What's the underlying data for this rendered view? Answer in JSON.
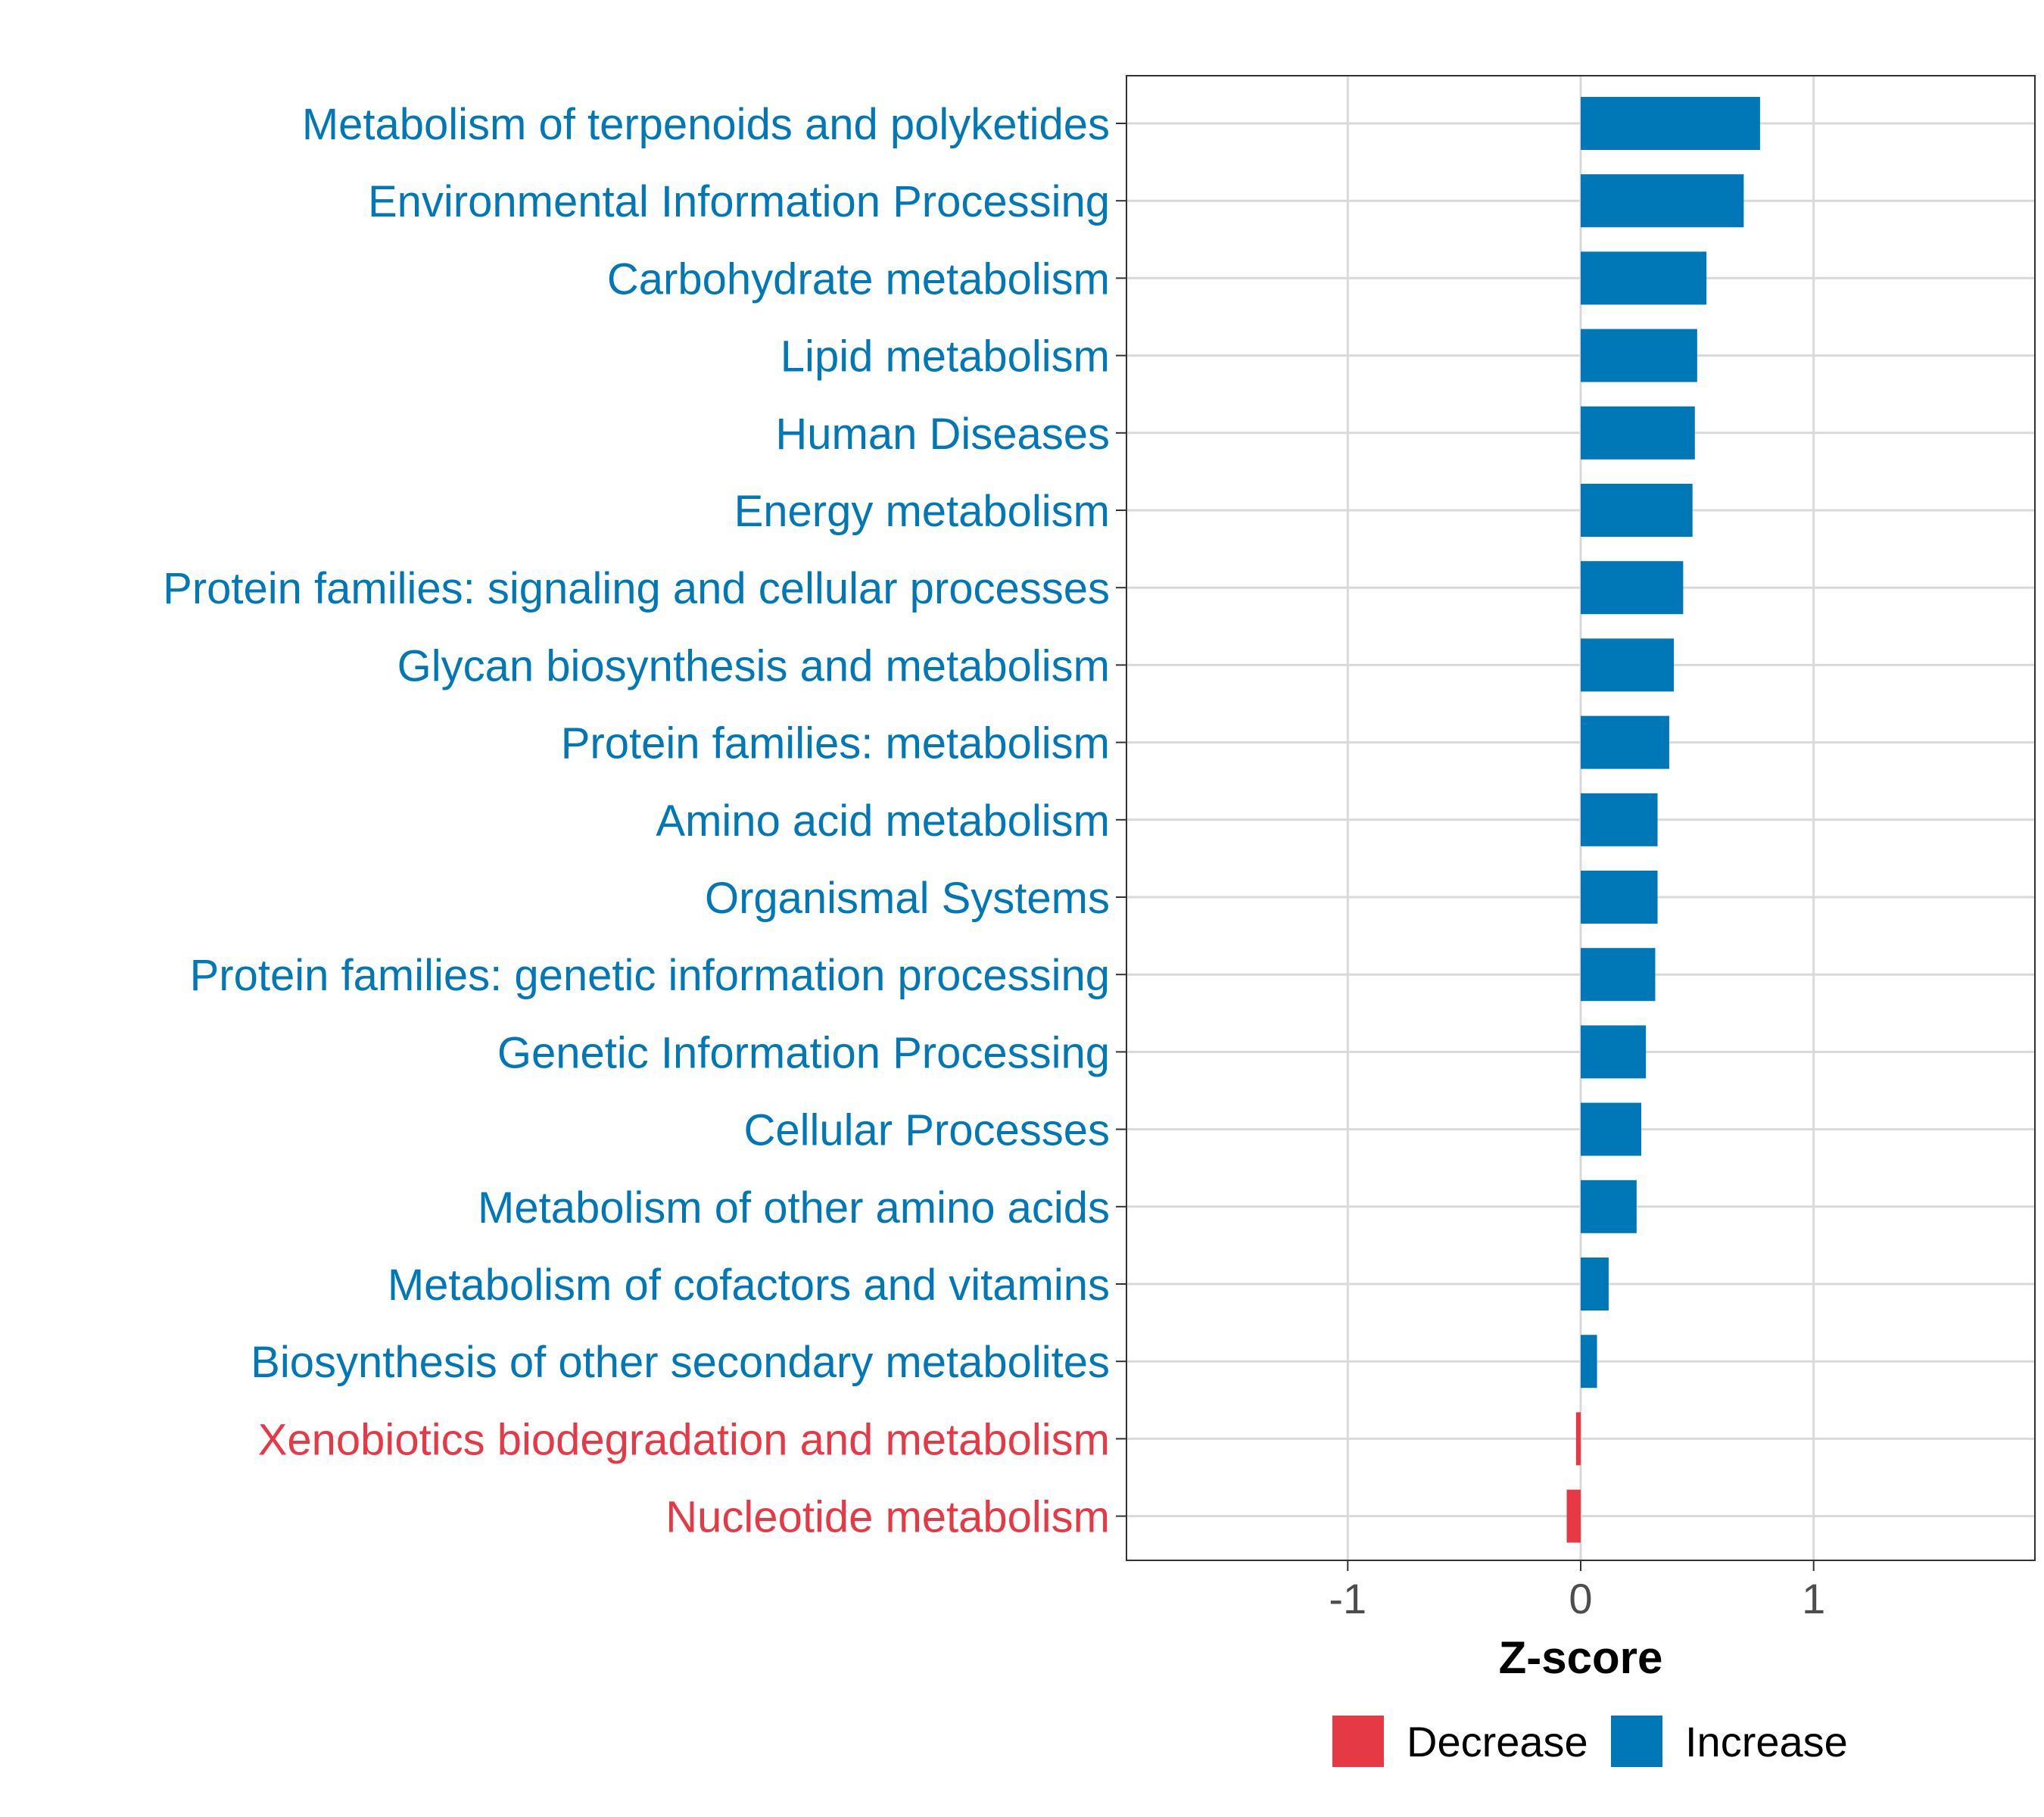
{
  "colors": {
    "increase": "#0077B6",
    "decrease": "#E63946",
    "grid": "#D9D9D9",
    "panel_border": "#333333",
    "tick_text": "#4D4D4D",
    "title_text": "#000000"
  },
  "chart_data": {
    "type": "bar",
    "orientation": "horizontal",
    "title": "",
    "xlabel": "Z-score",
    "ylabel": "",
    "xlim": [
      -1.95,
      1.95
    ],
    "xticks": [
      -1,
      0,
      1
    ],
    "xtick_labels": [
      "-1",
      "0",
      "1"
    ],
    "grid": true,
    "legend_position": "bottom",
    "legend": [
      {
        "label": "Decrease",
        "color_key": "decrease"
      },
      {
        "label": "Increase",
        "color_key": "increase"
      }
    ],
    "categories": [
      "Metabolism of terpenoids and polyketides",
      "Environmental Information Processing",
      "Carbohydrate metabolism",
      "Lipid metabolism",
      "Human Diseases",
      "Energy metabolism",
      "Protein families: signaling and cellular processes",
      "Glycan biosynthesis and metabolism",
      "Protein families: metabolism",
      "Amino acid metabolism",
      "Organismal Systems",
      "Protein families: genetic information processing",
      "Genetic Information Processing",
      "Cellular Processes",
      "Metabolism of other amino acids",
      "Metabolism of cofactors and vitamins",
      "Biosynthesis of other secondary metabolites",
      "Xenobiotics biodegradation and metabolism",
      "Nucleotide metabolism"
    ],
    "values": [
      0.77,
      0.7,
      0.54,
      0.5,
      0.49,
      0.48,
      0.44,
      0.4,
      0.38,
      0.33,
      0.33,
      0.32,
      0.28,
      0.26,
      0.24,
      0.12,
      0.07,
      -0.02,
      -0.06
    ],
    "groups": [
      "Increase",
      "Increase",
      "Increase",
      "Increase",
      "Increase",
      "Increase",
      "Increase",
      "Increase",
      "Increase",
      "Increase",
      "Increase",
      "Increase",
      "Increase",
      "Increase",
      "Increase",
      "Increase",
      "Increase",
      "Decrease",
      "Decrease"
    ]
  }
}
